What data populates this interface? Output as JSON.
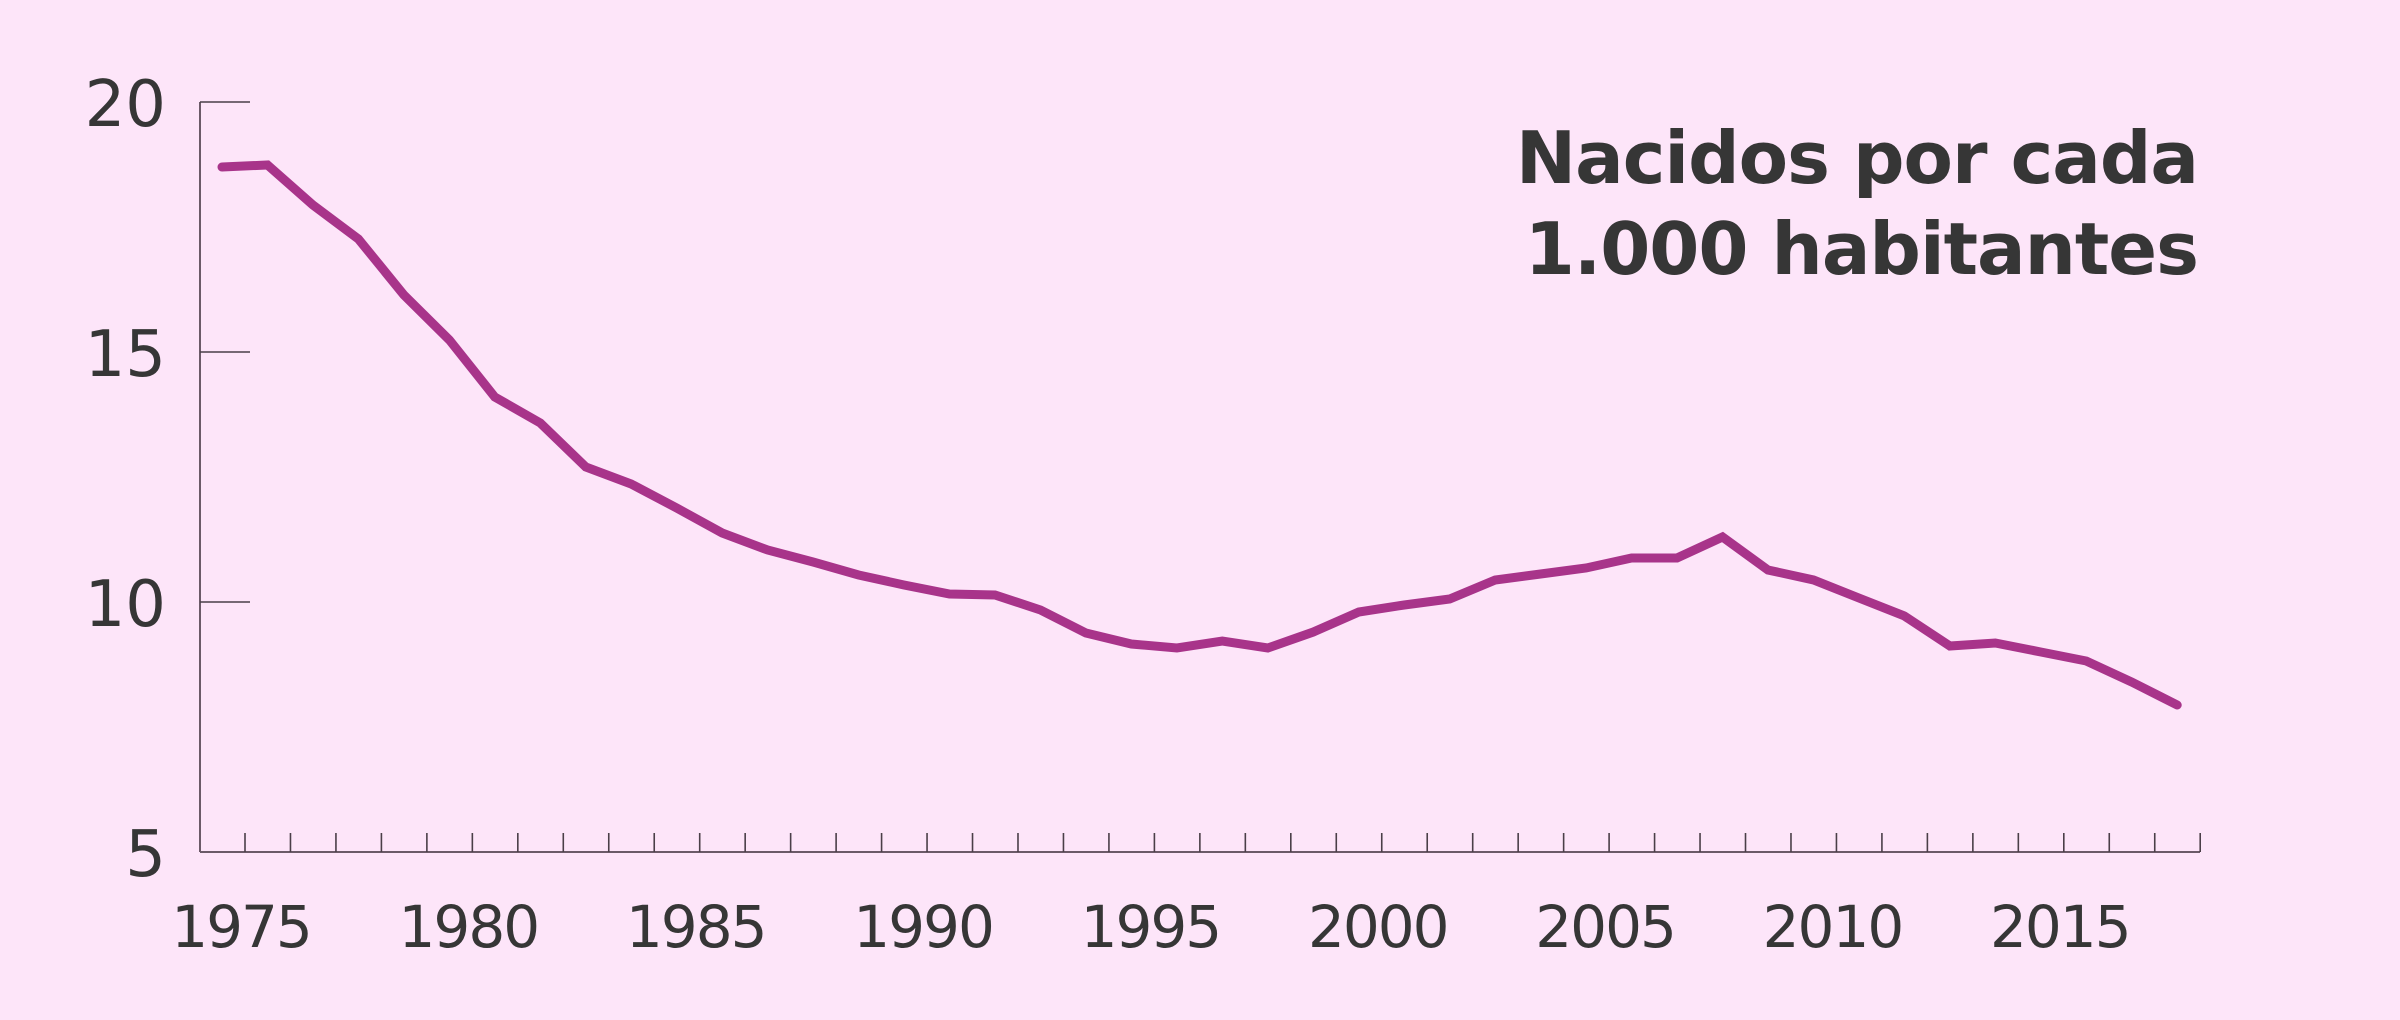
{
  "colors": {
    "background": "#fde5f9",
    "line": "#a8348a",
    "text": "#363636",
    "axis": "#6b5a68"
  },
  "title": {
    "line1": "Nacidos por cada",
    "line2": "1.000 habitantes"
  },
  "chart_data": {
    "type": "line",
    "title": "Nacidos por cada 1.000 habitantes",
    "xlabel": "",
    "ylabel": "",
    "x": [
      1975,
      1976,
      1977,
      1978,
      1979,
      1980,
      1981,
      1982,
      1983,
      1984,
      1985,
      1986,
      1987,
      1988,
      1989,
      1990,
      1991,
      1992,
      1993,
      1994,
      1995,
      1996,
      1997,
      1998,
      1999,
      2000,
      2001,
      2002,
      2003,
      2004,
      2005,
      2006,
      2007,
      2008,
      2009,
      2010,
      2011,
      2012,
      2013,
      2014,
      2015,
      2016,
      2017,
      2018
    ],
    "series": [
      {
        "name": "Nacidos por cada 1.000 habitantes",
        "values": [
          18.7,
          18.74,
          17.94,
          17.26,
          16.14,
          15.24,
          14.1,
          13.58,
          12.7,
          12.36,
          11.88,
          11.38,
          11.04,
          10.8,
          10.54,
          10.34,
          10.16,
          10.14,
          9.84,
          9.38,
          9.16,
          9.08,
          9.22,
          9.08,
          9.4,
          9.8,
          9.94,
          10.06,
          10.44,
          10.56,
          10.68,
          10.88,
          10.88,
          11.3,
          10.64,
          10.44,
          10.08,
          9.72,
          9.12,
          9.18,
          9.0,
          8.82,
          8.4,
          7.94
        ]
      }
    ],
    "yticks": [
      5,
      10,
      15,
      20
    ],
    "ytick_labels": [
      "5",
      "10",
      "15",
      "20"
    ],
    "xtick_labels": [
      "1975",
      "1980",
      "1985",
      "1990",
      "1995",
      "2000",
      "2005",
      "2010",
      "2015"
    ],
    "ylim": [
      5,
      20
    ],
    "xlim": [
      1975,
      2018
    ],
    "grid": false,
    "legend": null
  }
}
